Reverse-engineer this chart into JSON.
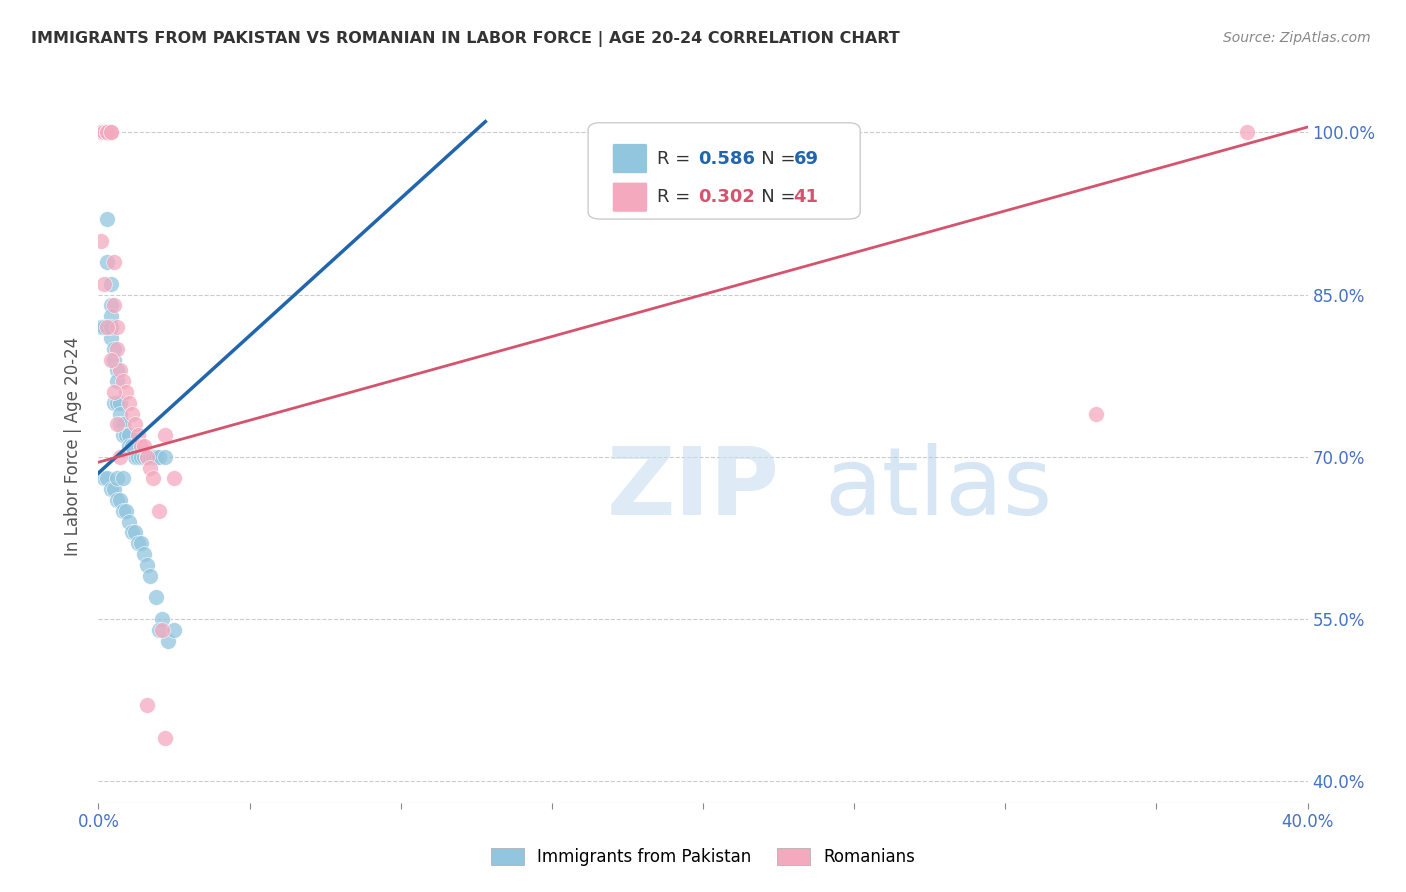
{
  "title": "IMMIGRANTS FROM PAKISTAN VS ROMANIAN IN LABOR FORCE | AGE 20-24 CORRELATION CHART",
  "source": "Source: ZipAtlas.com",
  "ylabel": "In Labor Force | Age 20-24",
  "xlim": [
    0.0,
    0.4
  ],
  "ylim": [
    0.38,
    1.04
  ],
  "yticks": [
    0.4,
    0.55,
    0.7,
    0.85,
    1.0
  ],
  "ytick_labels": [
    "40.0%",
    "55.0%",
    "70.0%",
    "85.0%",
    "100.0%"
  ],
  "xticks": [
    0.0,
    0.05,
    0.1,
    0.15,
    0.2,
    0.25,
    0.3,
    0.35,
    0.4
  ],
  "xtick_labels": [
    "0.0%",
    "",
    "",
    "",
    "",
    "",
    "",
    "",
    "40.0%"
  ],
  "blue_color": "#92c5de",
  "pink_color": "#f4a9be",
  "blue_line_color": "#2166ac",
  "pink_line_color": "#d6536d",
  "blue_R": 0.586,
  "blue_N": 69,
  "pink_R": 0.302,
  "pink_N": 41,
  "blue_label": "Immigrants from Pakistan",
  "pink_label": "Romanians",
  "watermark": "ZIPatlas",
  "background_color": "#ffffff",
  "grid_color": "#cccccc",
  "title_color": "#333333",
  "axis_label_color": "#555555",
  "tick_color": "#4472c4",
  "blue_trend_x": [
    0.0,
    0.128
  ],
  "blue_trend_y": [
    0.685,
    1.01
  ],
  "pink_trend_x": [
    0.0,
    0.4
  ],
  "pink_trend_y": [
    0.695,
    1.005
  ],
  "blue_x": [
    0.001,
    0.001,
    0.001,
    0.001,
    0.002,
    0.002,
    0.002,
    0.002,
    0.002,
    0.003,
    0.003,
    0.003,
    0.003,
    0.003,
    0.004,
    0.004,
    0.004,
    0.004,
    0.005,
    0.005,
    0.005,
    0.006,
    0.006,
    0.006,
    0.007,
    0.007,
    0.007,
    0.008,
    0.008,
    0.009,
    0.01,
    0.01,
    0.011,
    0.012,
    0.013,
    0.014,
    0.015,
    0.016,
    0.017,
    0.018,
    0.019,
    0.02,
    0.022,
    0.002,
    0.003,
    0.004,
    0.005,
    0.006,
    0.007,
    0.008,
    0.009,
    0.01,
    0.011,
    0.012,
    0.013,
    0.014,
    0.015,
    0.016,
    0.017,
    0.019,
    0.021,
    0.023,
    0.001,
    0.002,
    0.004,
    0.006,
    0.008,
    0.02,
    0.025
  ],
  "blue_y": [
    1.0,
    1.0,
    1.0,
    1.0,
    1.0,
    1.0,
    1.0,
    1.0,
    1.0,
    1.0,
    1.0,
    1.0,
    0.92,
    0.88,
    0.86,
    0.84,
    0.83,
    0.81,
    0.8,
    0.79,
    0.75,
    0.78,
    0.77,
    0.75,
    0.75,
    0.74,
    0.73,
    0.73,
    0.72,
    0.72,
    0.72,
    0.71,
    0.71,
    0.7,
    0.7,
    0.7,
    0.7,
    0.7,
    0.7,
    0.7,
    0.7,
    0.7,
    0.7,
    0.68,
    0.68,
    0.67,
    0.67,
    0.66,
    0.66,
    0.65,
    0.65,
    0.64,
    0.63,
    0.63,
    0.62,
    0.62,
    0.61,
    0.6,
    0.59,
    0.57,
    0.55,
    0.53,
    0.82,
    0.82,
    0.82,
    0.68,
    0.68,
    0.54,
    0.54
  ],
  "pink_x": [
    0.001,
    0.001,
    0.002,
    0.002,
    0.002,
    0.003,
    0.003,
    0.003,
    0.004,
    0.004,
    0.005,
    0.005,
    0.006,
    0.006,
    0.007,
    0.008,
    0.009,
    0.01,
    0.011,
    0.012,
    0.013,
    0.014,
    0.015,
    0.016,
    0.017,
    0.018,
    0.02,
    0.001,
    0.002,
    0.003,
    0.004,
    0.005,
    0.006,
    0.007,
    0.022,
    0.025,
    0.33,
    0.38,
    0.016,
    0.021,
    0.022
  ],
  "pink_y": [
    1.0,
    1.0,
    1.0,
    1.0,
    1.0,
    1.0,
    1.0,
    1.0,
    1.0,
    1.0,
    0.88,
    0.84,
    0.82,
    0.8,
    0.78,
    0.77,
    0.76,
    0.75,
    0.74,
    0.73,
    0.72,
    0.71,
    0.71,
    0.7,
    0.69,
    0.68,
    0.65,
    0.9,
    0.86,
    0.82,
    0.79,
    0.76,
    0.73,
    0.7,
    0.72,
    0.68,
    0.74,
    1.0,
    0.47,
    0.54,
    0.44
  ]
}
